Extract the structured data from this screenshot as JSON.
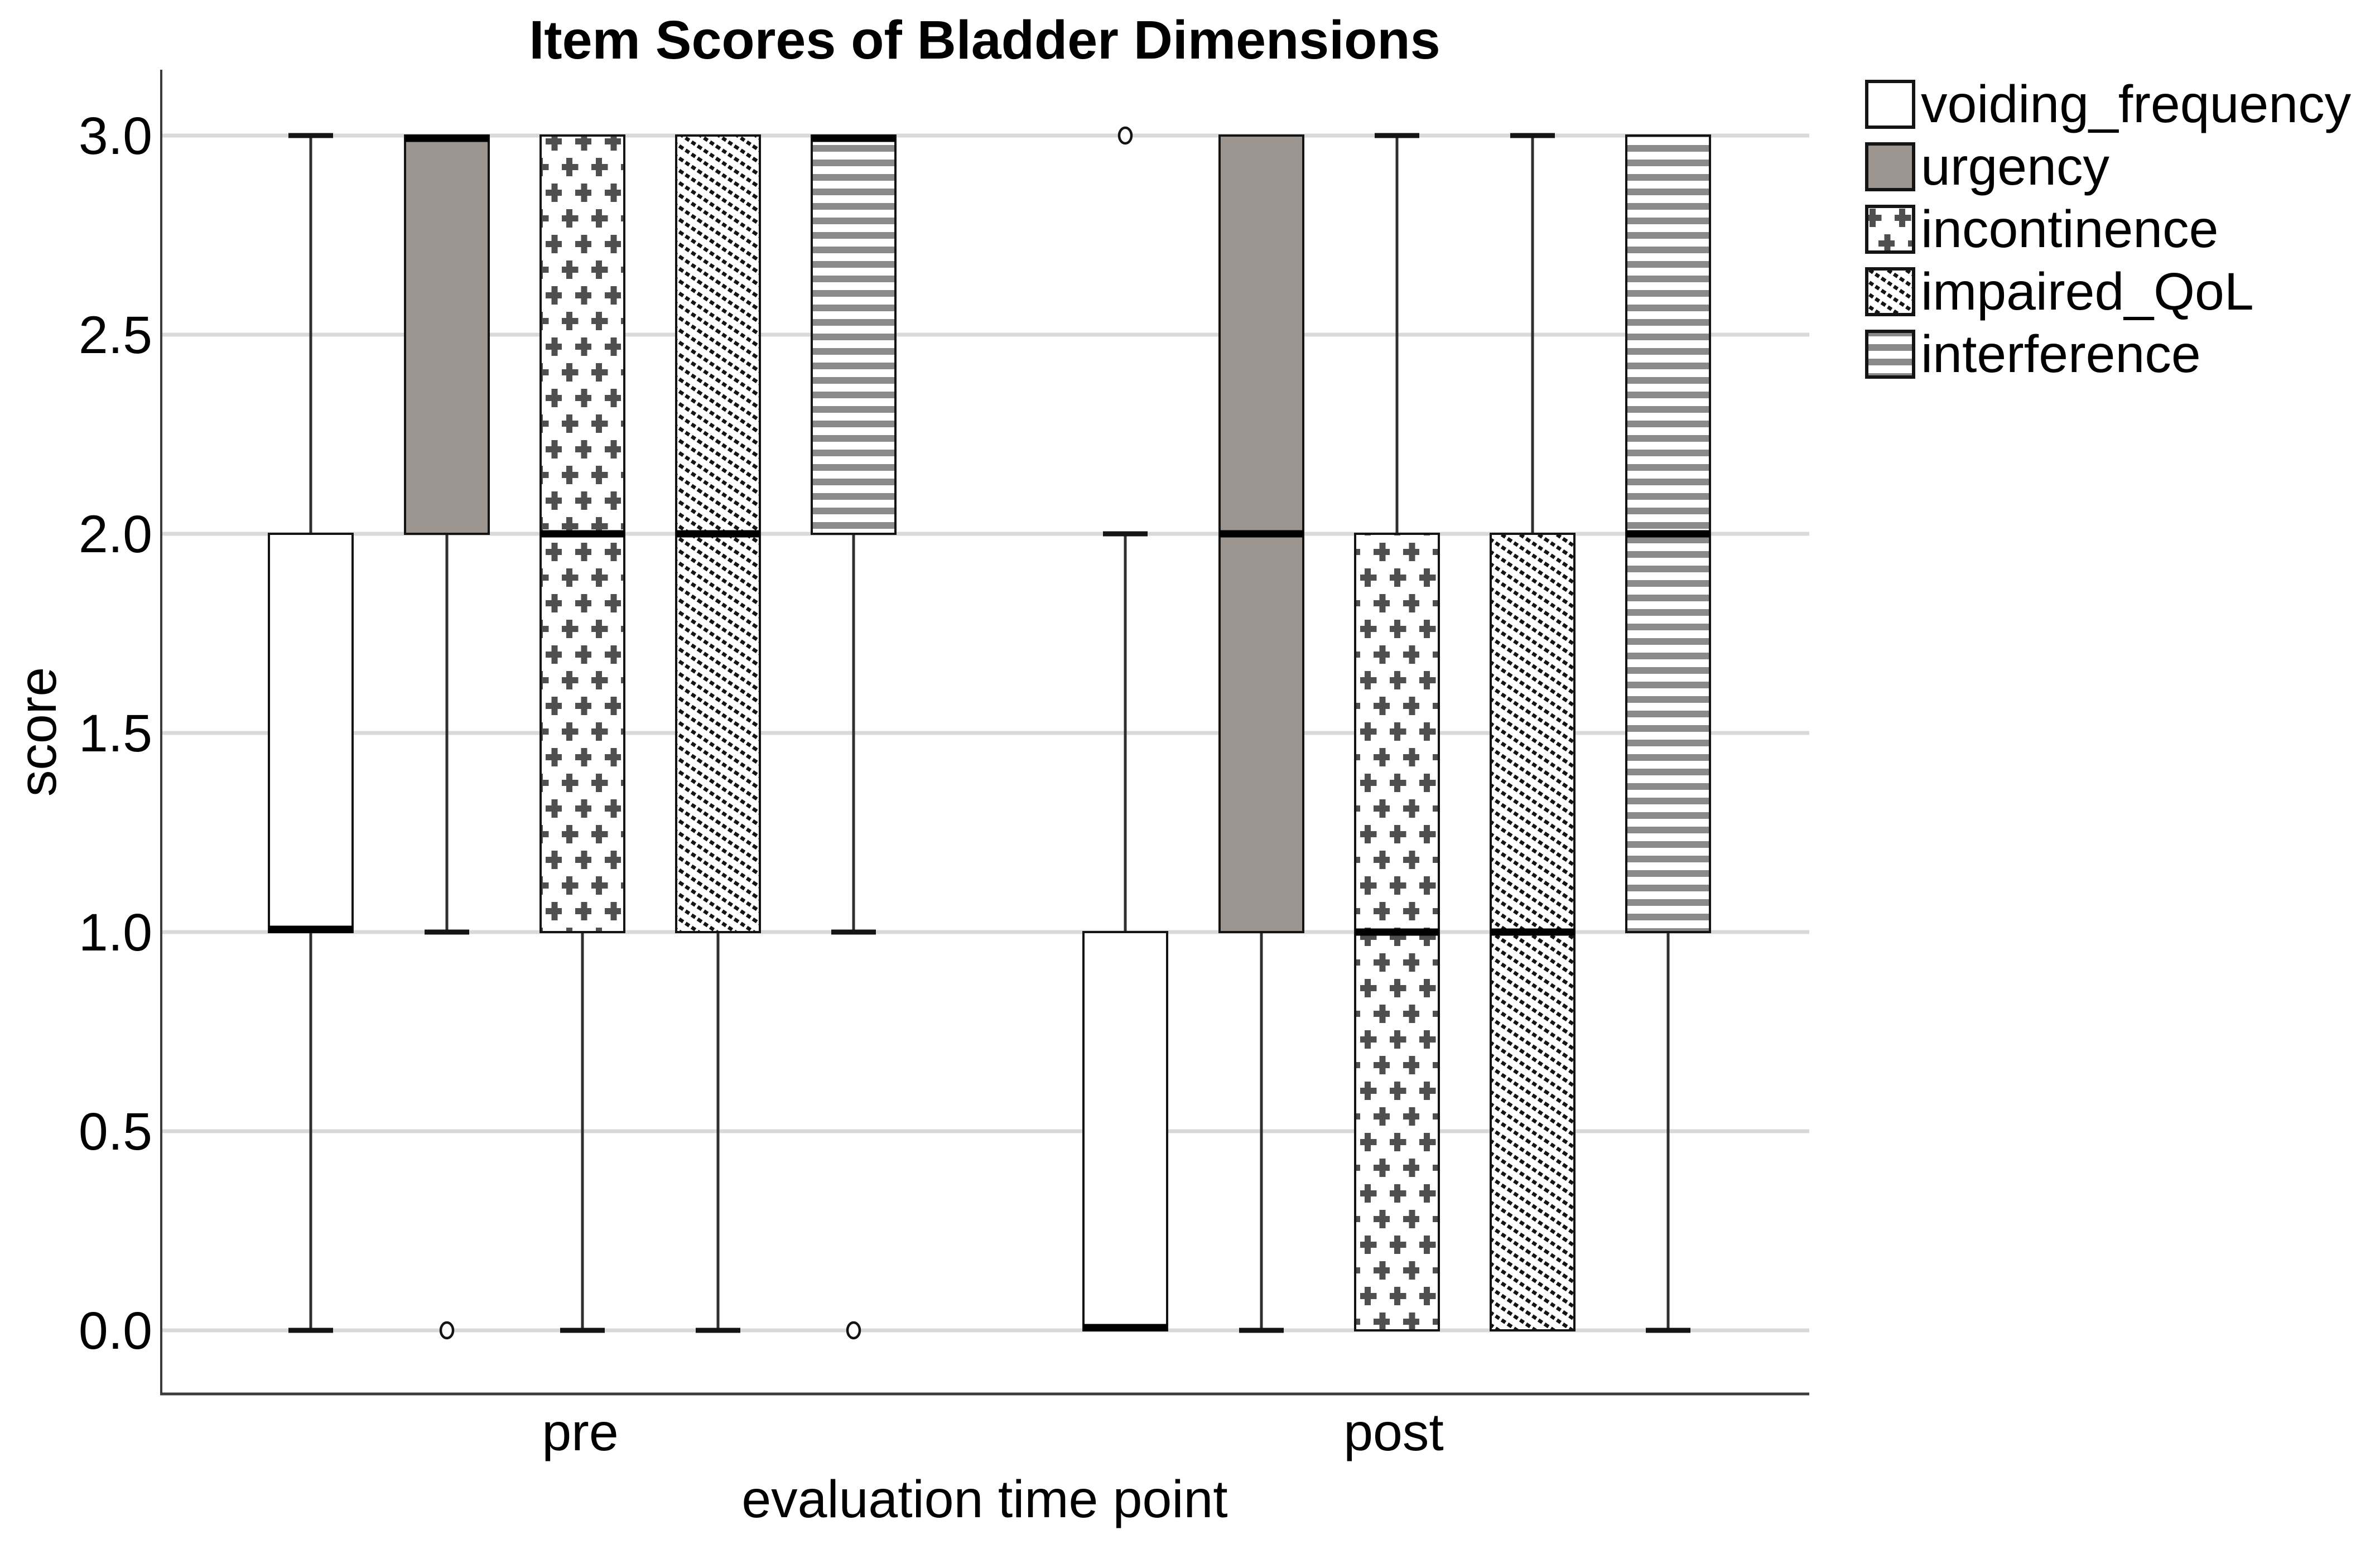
{
  "chart_data": {
    "type": "boxplot",
    "title": "Item Scores of Bladder Dimensions",
    "xlabel": "evaluation time point",
    "ylabel": "score",
    "ylim": [
      0,
      3
    ],
    "y_tick_step": 0.5,
    "y_ticks": [
      "3.0",
      "2.5",
      "2.0",
      "1.5",
      "1.0",
      "0.5",
      "0.0"
    ],
    "categories": [
      "pre",
      "post"
    ],
    "grid": "horizontal-only",
    "legend_position": "outside-top-right",
    "series": [
      {
        "name": "voiding_frequency",
        "fill": "white",
        "boxes": [
          {
            "category": "pre",
            "whisker_low": 0,
            "q1": 1,
            "median": 1,
            "q3": 2,
            "whisker_high": 3,
            "outliers": []
          },
          {
            "category": "post",
            "whisker_low": 0,
            "q1": 0,
            "median": 0,
            "q3": 1,
            "whisker_high": 2,
            "outliers": [
              3
            ]
          }
        ]
      },
      {
        "name": "urgency",
        "fill": "gray",
        "boxes": [
          {
            "category": "pre",
            "whisker_low": 1,
            "q1": 2,
            "median": 3,
            "q3": 3,
            "whisker_high": 3,
            "outliers": [
              0
            ]
          },
          {
            "category": "post",
            "whisker_low": 0,
            "q1": 1,
            "median": 2,
            "q3": 3,
            "whisker_high": 3,
            "outliers": []
          }
        ]
      },
      {
        "name": "incontinence",
        "fill": "plus-hatch",
        "boxes": [
          {
            "category": "pre",
            "whisker_low": 0,
            "q1": 1,
            "median": 2,
            "q3": 3,
            "whisker_high": 3,
            "outliers": []
          },
          {
            "category": "post",
            "whisker_low": 0,
            "q1": 0,
            "median": 1,
            "q3": 2,
            "whisker_high": 3,
            "outliers": []
          }
        ]
      },
      {
        "name": "impaired_QoL",
        "fill": "diagonal-hatch",
        "boxes": [
          {
            "category": "pre",
            "whisker_low": 0,
            "q1": 1,
            "median": 2,
            "q3": 3,
            "whisker_high": 3,
            "outliers": []
          },
          {
            "category": "post",
            "whisker_low": 0,
            "q1": 0,
            "median": 1,
            "q3": 2,
            "whisker_high": 3,
            "outliers": []
          }
        ]
      },
      {
        "name": "interference",
        "fill": "horizontal-stripes",
        "boxes": [
          {
            "category": "pre",
            "whisker_low": 1,
            "q1": 2,
            "median": 3,
            "q3": 3,
            "whisker_high": 3,
            "outliers": [
              0
            ]
          },
          {
            "category": "post",
            "whisker_low": 0,
            "q1": 1,
            "median": 2,
            "q3": 3,
            "whisker_high": 3,
            "outliers": []
          }
        ]
      }
    ],
    "colors": {
      "background": "#ffffff",
      "box_gray": "#9c948e",
      "grid_line": "#d9d9d9",
      "axis_line": "#3c3c3c",
      "box_border": "#141414",
      "median_line": "#000000",
      "whisker_line": "#2f2f2f",
      "pattern_plus": "#4f4f4f",
      "pattern_diagonal": "#141414",
      "pattern_stripe": "#8a8a8a"
    }
  }
}
